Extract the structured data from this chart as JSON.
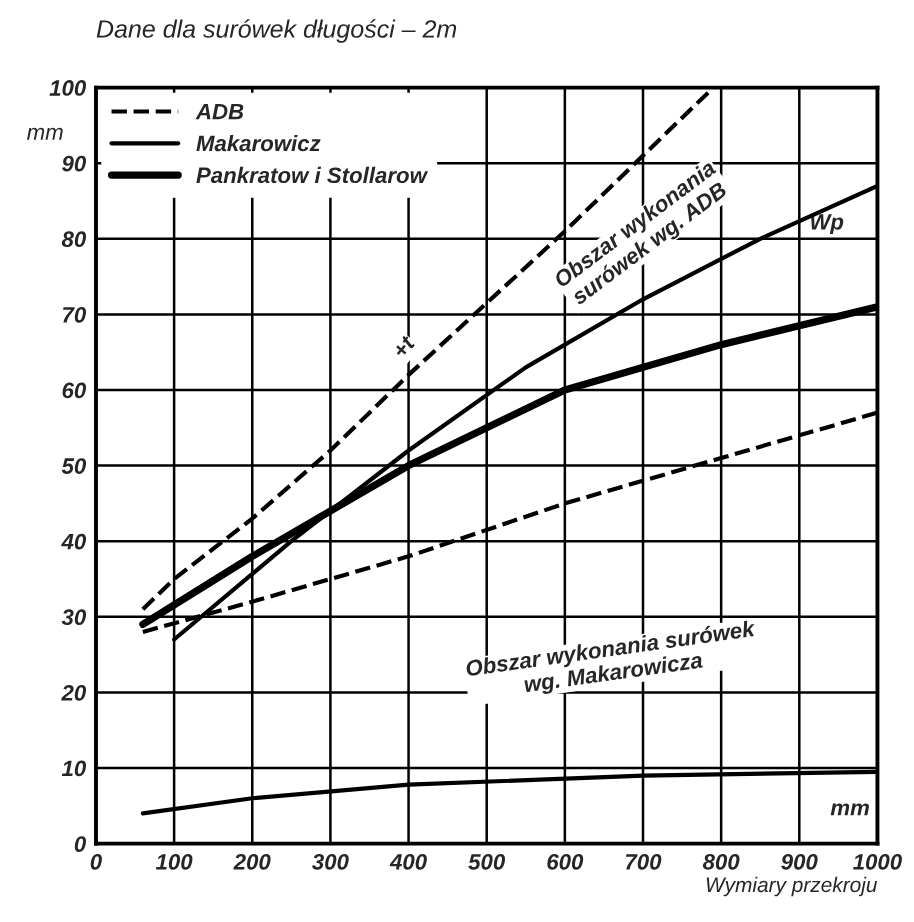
{
  "chart_data": {
    "type": "line",
    "title": "Dane dla surówek długości – 2m",
    "xlabel": "Wymiary przekroju",
    "ylabel": "mm",
    "xlim": [
      0,
      1000
    ],
    "xticks": [
      0,
      100,
      200,
      300,
      400,
      500,
      600,
      700,
      800,
      900,
      1000
    ],
    "ylim": [
      0,
      100
    ],
    "yticks": [
      0,
      10,
      20,
      30,
      40,
      50,
      60,
      70,
      80,
      90,
      100
    ],
    "grid": true,
    "legend": "top left",
    "marker": "none",
    "series": [
      {
        "name": "ADB",
        "color": "#000000",
        "line_style": "dashed",
        "x": [
          60,
          100,
          200,
          300,
          400,
          600,
          790
        ],
        "values": [
          31,
          35,
          43,
          52,
          62,
          81,
          100
        ]
      },
      {
        "color": "#000000",
        "line_style": "dashed",
        "x": [
          60,
          200,
          400,
          600,
          800,
          1000
        ],
        "values": [
          28,
          32,
          38,
          45,
          51,
          57
        ]
      },
      {
        "name": "Makarowicz",
        "color": "#000000",
        "line_style": "solid",
        "x": [
          100,
          250,
          400,
          550,
          700,
          850,
          1000
        ],
        "values": [
          27,
          40,
          52,
          63,
          72,
          80,
          87
        ]
      },
      {
        "color": "#000000",
        "line_style": "solid",
        "x": [
          60,
          200,
          400,
          700,
          1000
        ],
        "values": [
          4,
          6,
          7.8,
          9,
          9.5
        ]
      },
      {
        "name": "Pankratow i Stollarow",
        "color": "#000000",
        "line_style": "solid",
        "x": [
          60,
          200,
          400,
          600,
          800,
          1000
        ],
        "values": [
          29,
          38,
          50,
          60,
          66,
          71
        ]
      }
    ],
    "annotations": [
      "Obszar wykonania\nsurówek wg. ADB",
      "Wp",
      "+t",
      "Obszar wykonania surówek\nwg. Makarowicza",
      "mm"
    ]
  }
}
